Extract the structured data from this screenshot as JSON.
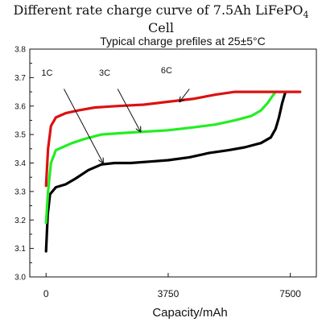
{
  "figure_title": {
    "prefix": "Different rate charge curve of 7.5Ah LiFePO",
    "subscript": "4",
    "suffix": " Cell"
  },
  "chart_data": {
    "type": "line",
    "title": "Typical charge prefiles at 25±5°C",
    "xlabel": "Capacity/mAh",
    "ylabel": "",
    "xlim": [
      -500,
      8300
    ],
    "ylim": [
      3.0,
      3.8
    ],
    "xticks": [
      0,
      3750,
      7500
    ],
    "yticks": [
      3.0,
      3.1,
      3.2,
      3.3,
      3.4,
      3.5,
      3.6,
      3.7,
      3.8
    ],
    "grid": false,
    "series": [
      {
        "name": "1C",
        "color": "#000000",
        "x": [
          0,
          50,
          120,
          300,
          600,
          900,
          1300,
          1700,
          2100,
          2600,
          3200,
          3750,
          4400,
          5000,
          5600,
          6100,
          6600,
          6900,
          7050,
          7150,
          7250,
          7350
        ],
        "y": [
          3.09,
          3.22,
          3.29,
          3.315,
          3.325,
          3.345,
          3.375,
          3.395,
          3.4,
          3.4,
          3.405,
          3.41,
          3.42,
          3.435,
          3.445,
          3.455,
          3.47,
          3.49,
          3.52,
          3.56,
          3.61,
          3.65
        ]
      },
      {
        "name": "3C",
        "color": "#22ee22",
        "x": [
          0,
          60,
          150,
          300,
          500,
          800,
          1200,
          1700,
          2300,
          3000,
          3750,
          4500,
          5200,
          5800,
          6300,
          6600,
          6800,
          6950,
          7050
        ],
        "y": [
          3.19,
          3.3,
          3.4,
          3.445,
          3.455,
          3.47,
          3.485,
          3.5,
          3.505,
          3.51,
          3.515,
          3.525,
          3.535,
          3.55,
          3.565,
          3.585,
          3.61,
          3.635,
          3.65
        ]
      },
      {
        "name": "6C",
        "color": "#dd1111",
        "x": [
          0,
          60,
          150,
          300,
          600,
          1000,
          1500,
          2200,
          3000,
          3750,
          4500,
          5200,
          5800,
          6000,
          7800
        ],
        "y": [
          3.32,
          3.45,
          3.53,
          3.56,
          3.575,
          3.585,
          3.595,
          3.6,
          3.605,
          3.615,
          3.625,
          3.64,
          3.65,
          3.65,
          3.65
        ]
      }
    ],
    "annotations": [
      {
        "text": "1C",
        "label": [
          30,
          3.707
        ],
        "arrow_from": [
          550,
          3.66
        ],
        "arrow_to": [
          1750,
          3.4
        ]
      },
      {
        "text": "3C",
        "label": [
          1800,
          3.707
        ],
        "arrow_from": [
          2200,
          3.66
        ],
        "arrow_to": [
          2900,
          3.51
        ]
      },
      {
        "text": "6C",
        "label": [
          3700,
          3.715
        ],
        "arrow_from": [
          4400,
          3.66
        ],
        "arrow_to": [
          4100,
          3.615
        ]
      }
    ]
  }
}
